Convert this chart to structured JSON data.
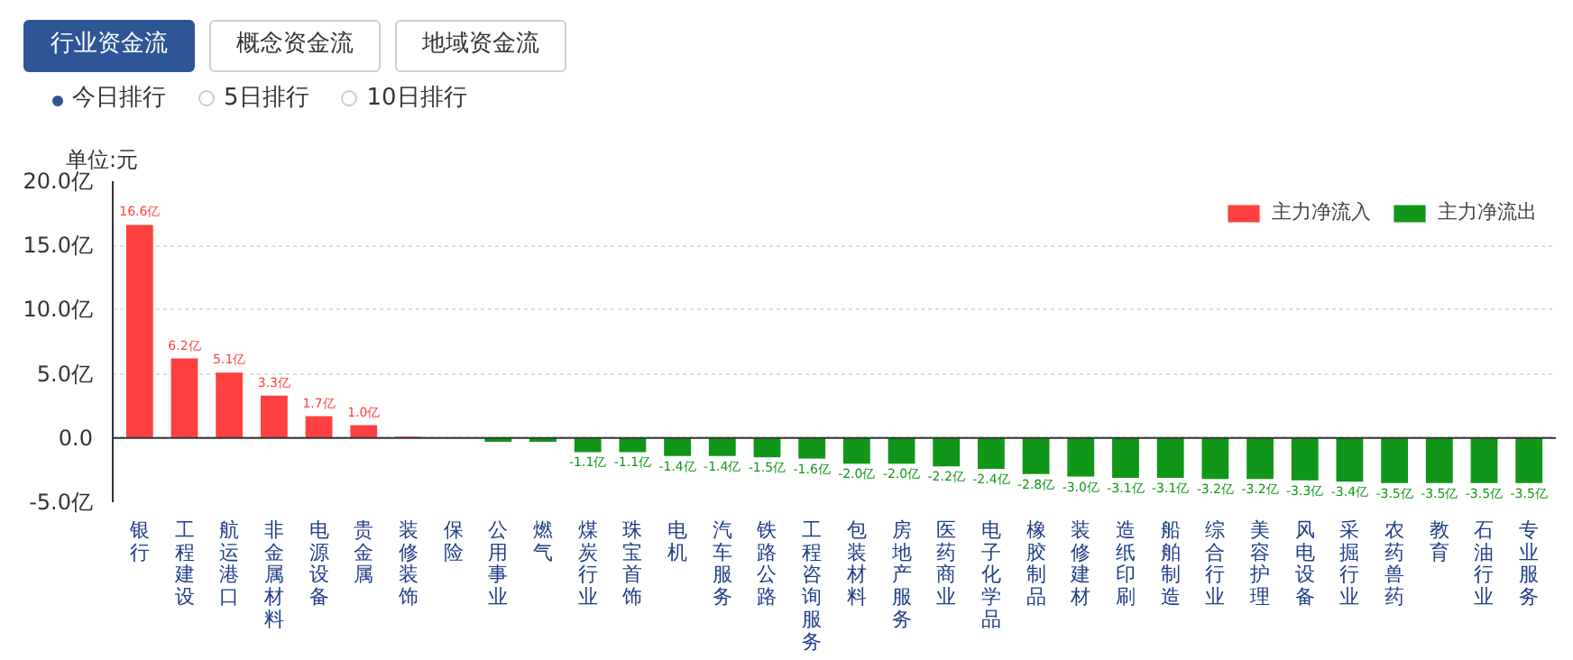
{
  "chart_data": {
    "type": "bar",
    "ylabel": "单位:元",
    "annotations": [
      "行业资金流",
      "概念资金流",
      "地域资金流",
      "今日排行",
      "5日排行",
      "10日排行"
    ],
    "categories": [
      "银行",
      "工程建设",
      "航运港口",
      "非金属材料",
      "电源设备",
      "贵金属",
      "装修装饰",
      "保险",
      "公用事业",
      "燃气",
      "煤炭行业",
      "珠宝首饰",
      "电机",
      "汽车服务",
      "铁路公路",
      "工程咨询服务",
      "包装材料",
      "房地产服务",
      "医药商业",
      "电子化学品",
      "橡胶制品",
      "装修建材",
      "造纸印刷",
      "船舶制造",
      "综合行业",
      "美容护理",
      "风电设备",
      "采掘行业",
      "农药兽药",
      "教育",
      "石油行业",
      "专业服务"
    ],
    "series": [
      {
        "name": "主力净流入",
        "color": "#ff4040",
        "values": [
          16.6,
          6.2,
          5.1,
          3.3,
          1.7,
          1.0,
          0.1,
          0.0,
          null,
          null,
          null,
          null,
          null,
          null,
          null,
          null,
          null,
          null,
          null,
          null,
          null,
          null,
          null,
          null,
          null,
          null,
          null,
          null,
          null,
          null,
          null,
          null
        ],
        "value_labels": [
          "16.6亿",
          "6.2亿",
          "5.1亿",
          "3.3亿",
          "1.7亿",
          "1.0亿",
          null,
          null,
          null,
          null,
          null,
          null,
          null,
          null,
          null,
          null,
          null,
          null,
          null,
          null,
          null,
          null,
          null,
          null,
          null,
          null,
          null,
          null,
          null,
          null,
          null,
          null
        ]
      },
      {
        "name": "主力净流出",
        "color": "#109618",
        "values": [
          null,
          null,
          null,
          null,
          null,
          null,
          null,
          null,
          -0.3,
          -0.3,
          -1.1,
          -1.1,
          -1.4,
          -1.4,
          -1.5,
          -1.6,
          -2.0,
          -2.0,
          -2.2,
          -2.4,
          -2.8,
          -3.0,
          -3.1,
          -3.1,
          -3.2,
          -3.2,
          -3.3,
          -3.4,
          -3.5,
          -3.5,
          -3.5,
          -3.5
        ],
        "value_labels": [
          null,
          null,
          null,
          null,
          null,
          null,
          null,
          null,
          null,
          null,
          "-1.1亿",
          "-1.1亿",
          "-1.4亿",
          "-1.4亿",
          "-1.5亿",
          "-1.6亿",
          "-2.0亿",
          "-2.0亿",
          "-2.2亿",
          "-2.4亿",
          "-2.8亿",
          "-3.0亿",
          "-3.1亿",
          "-3.1亿",
          "-3.2亿",
          "-3.2亿",
          "-3.3亿",
          "-3.4亿",
          "-3.5亿",
          "-3.5亿",
          "-3.5亿",
          "-3.5亿"
        ]
      }
    ],
    "ylim": [
      -5,
      20
    ],
    "yticks": [
      {
        "value": -5,
        "label": "-5.0亿"
      },
      {
        "value": 0,
        "label": "0.0"
      },
      {
        "value": 5,
        "label": "5.0亿"
      },
      {
        "value": 10,
        "label": "10.0亿"
      },
      {
        "value": 15,
        "label": "15.0亿"
      },
      {
        "value": 20,
        "label": "20.0亿"
      }
    ],
    "grid": "y",
    "legend": "top right"
  }
}
